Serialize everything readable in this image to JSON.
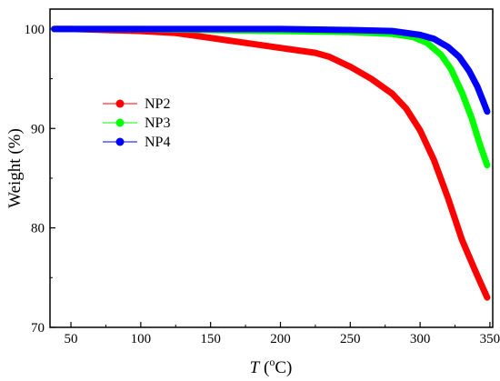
{
  "chart_data": {
    "type": "line",
    "title": "",
    "xlabel": {
      "italic": "T",
      "open": " (",
      "sup": "o",
      "unit": "C)"
    },
    "ylabel": "Weight (%)",
    "xlim": [
      35,
      352
    ],
    "ylim": [
      70,
      102
    ],
    "xticks": [
      50,
      100,
      150,
      200,
      250,
      300,
      350
    ],
    "yticks": [
      70,
      80,
      90,
      100
    ],
    "grid": false,
    "legend_position": "center-left",
    "series": [
      {
        "name": "NP2",
        "color": "#ff0000",
        "x": [
          38,
          50,
          75,
          100,
          125,
          150,
          175,
          200,
          225,
          235,
          250,
          265,
          280,
          290,
          300,
          310,
          320,
          330,
          340,
          348
        ],
        "y": [
          100,
          100,
          99.9,
          99.8,
          99.6,
          99.1,
          98.6,
          98.1,
          97.6,
          97.2,
          96.2,
          95.0,
          93.5,
          92.0,
          89.8,
          86.8,
          83.0,
          78.8,
          75.5,
          73.0
        ]
      },
      {
        "name": "NP3",
        "color": "#00ff00",
        "x": [
          38,
          50,
          100,
          150,
          200,
          250,
          280,
          295,
          305,
          315,
          322,
          330,
          337,
          343,
          348
        ],
        "y": [
          100,
          100,
          100,
          99.9,
          99.8,
          99.7,
          99.5,
          99.2,
          98.6,
          97.4,
          96.0,
          93.6,
          91.0,
          88.3,
          86.3
        ]
      },
      {
        "name": "NP4",
        "color": "#0000ff",
        "x": [
          38,
          50,
          100,
          150,
          200,
          250,
          280,
          300,
          310,
          320,
          328,
          335,
          341,
          345,
          348
        ],
        "y": [
          100,
          100,
          100,
          100,
          100,
          99.9,
          99.8,
          99.4,
          99.0,
          98.2,
          97.2,
          95.8,
          94.2,
          92.8,
          91.7
        ]
      }
    ]
  }
}
